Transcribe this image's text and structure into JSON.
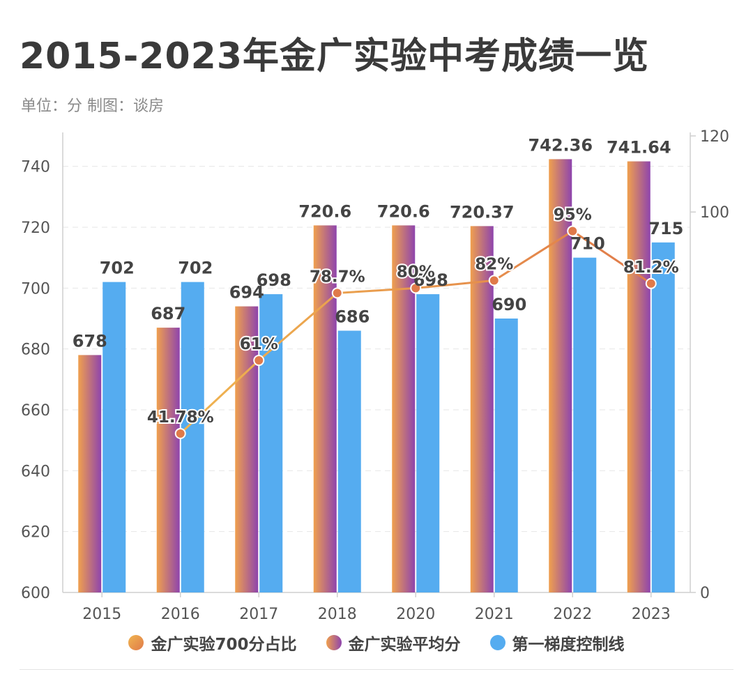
{
  "title": "2015-2023年金广实验中考成绩一览",
  "subtitle": "单位：分 制图：谈房",
  "colors": {
    "bar_grad_start": "#f0a04e",
    "bar_grad_end": "#8e44ad",
    "bar_secondary": "#55acf0",
    "line": "#f0b550",
    "line_end": "#e07a4a",
    "grid": "#e6e6e6",
    "axis_text": "#555555",
    "label_text": "#444444"
  },
  "chart_data": {
    "type": "bar",
    "categories": [
      "2015",
      "2016",
      "2017",
      "2018",
      "2020",
      "2021",
      "2022",
      "2023"
    ],
    "ylim": [
      600,
      750
    ],
    "yticks": [
      600,
      620,
      640,
      660,
      680,
      700,
      720,
      740
    ],
    "y2lim": [
      0,
      120
    ],
    "y2ticks": [
      0,
      100,
      120
    ],
    "grid": true,
    "legend_position": "bottom",
    "series": [
      {
        "name": "金广实验平均分",
        "kind": "bar",
        "axis": "left",
        "values": [
          678,
          687,
          694,
          720.6,
          720.6,
          720.37,
          742.36,
          741.64
        ],
        "labels": [
          "678",
          "687",
          "694",
          "720.6",
          "720.6",
          "720.37",
          "742.36",
          "741.64"
        ]
      },
      {
        "name": "第一梯度控制线",
        "kind": "bar",
        "axis": "left",
        "values": [
          702,
          702,
          698,
          686,
          698,
          690,
          710,
          715
        ],
        "labels": [
          "702",
          "702",
          "698",
          "686",
          "698",
          "690",
          "710",
          "715"
        ]
      },
      {
        "name": "金广实验700分占比",
        "kind": "line",
        "axis": "right",
        "values": [
          null,
          41.78,
          61,
          78.7,
          80,
          82,
          95,
          81.2
        ],
        "labels": [
          "",
          "41.78%",
          "61%",
          "78.7%",
          "80%",
          "82%",
          "95%",
          "81.2%"
        ]
      }
    ],
    "legend": [
      "金广实验700分占比",
      "金广实验平均分",
      "第一梯度控制线"
    ]
  }
}
